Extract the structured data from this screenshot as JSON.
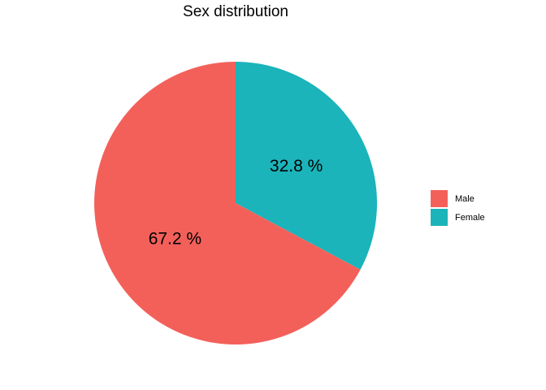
{
  "chart_data": {
    "type": "pie",
    "title": "Sex distribution",
    "categories": [
      "Male",
      "Female"
    ],
    "values": [
      67.2,
      32.8
    ],
    "labels": [
      "67.2 %",
      "32.8 %"
    ],
    "colors": [
      "#F8766D",
      "#00BFC4"
    ],
    "slice_colors_rendered": [
      "#F3605A",
      "#1AB4BA"
    ],
    "start_angle": "12 o'clock",
    "direction": "clockwise, Female first",
    "legend": {
      "position": "right",
      "entries": [
        "Male",
        "Female"
      ]
    }
  }
}
